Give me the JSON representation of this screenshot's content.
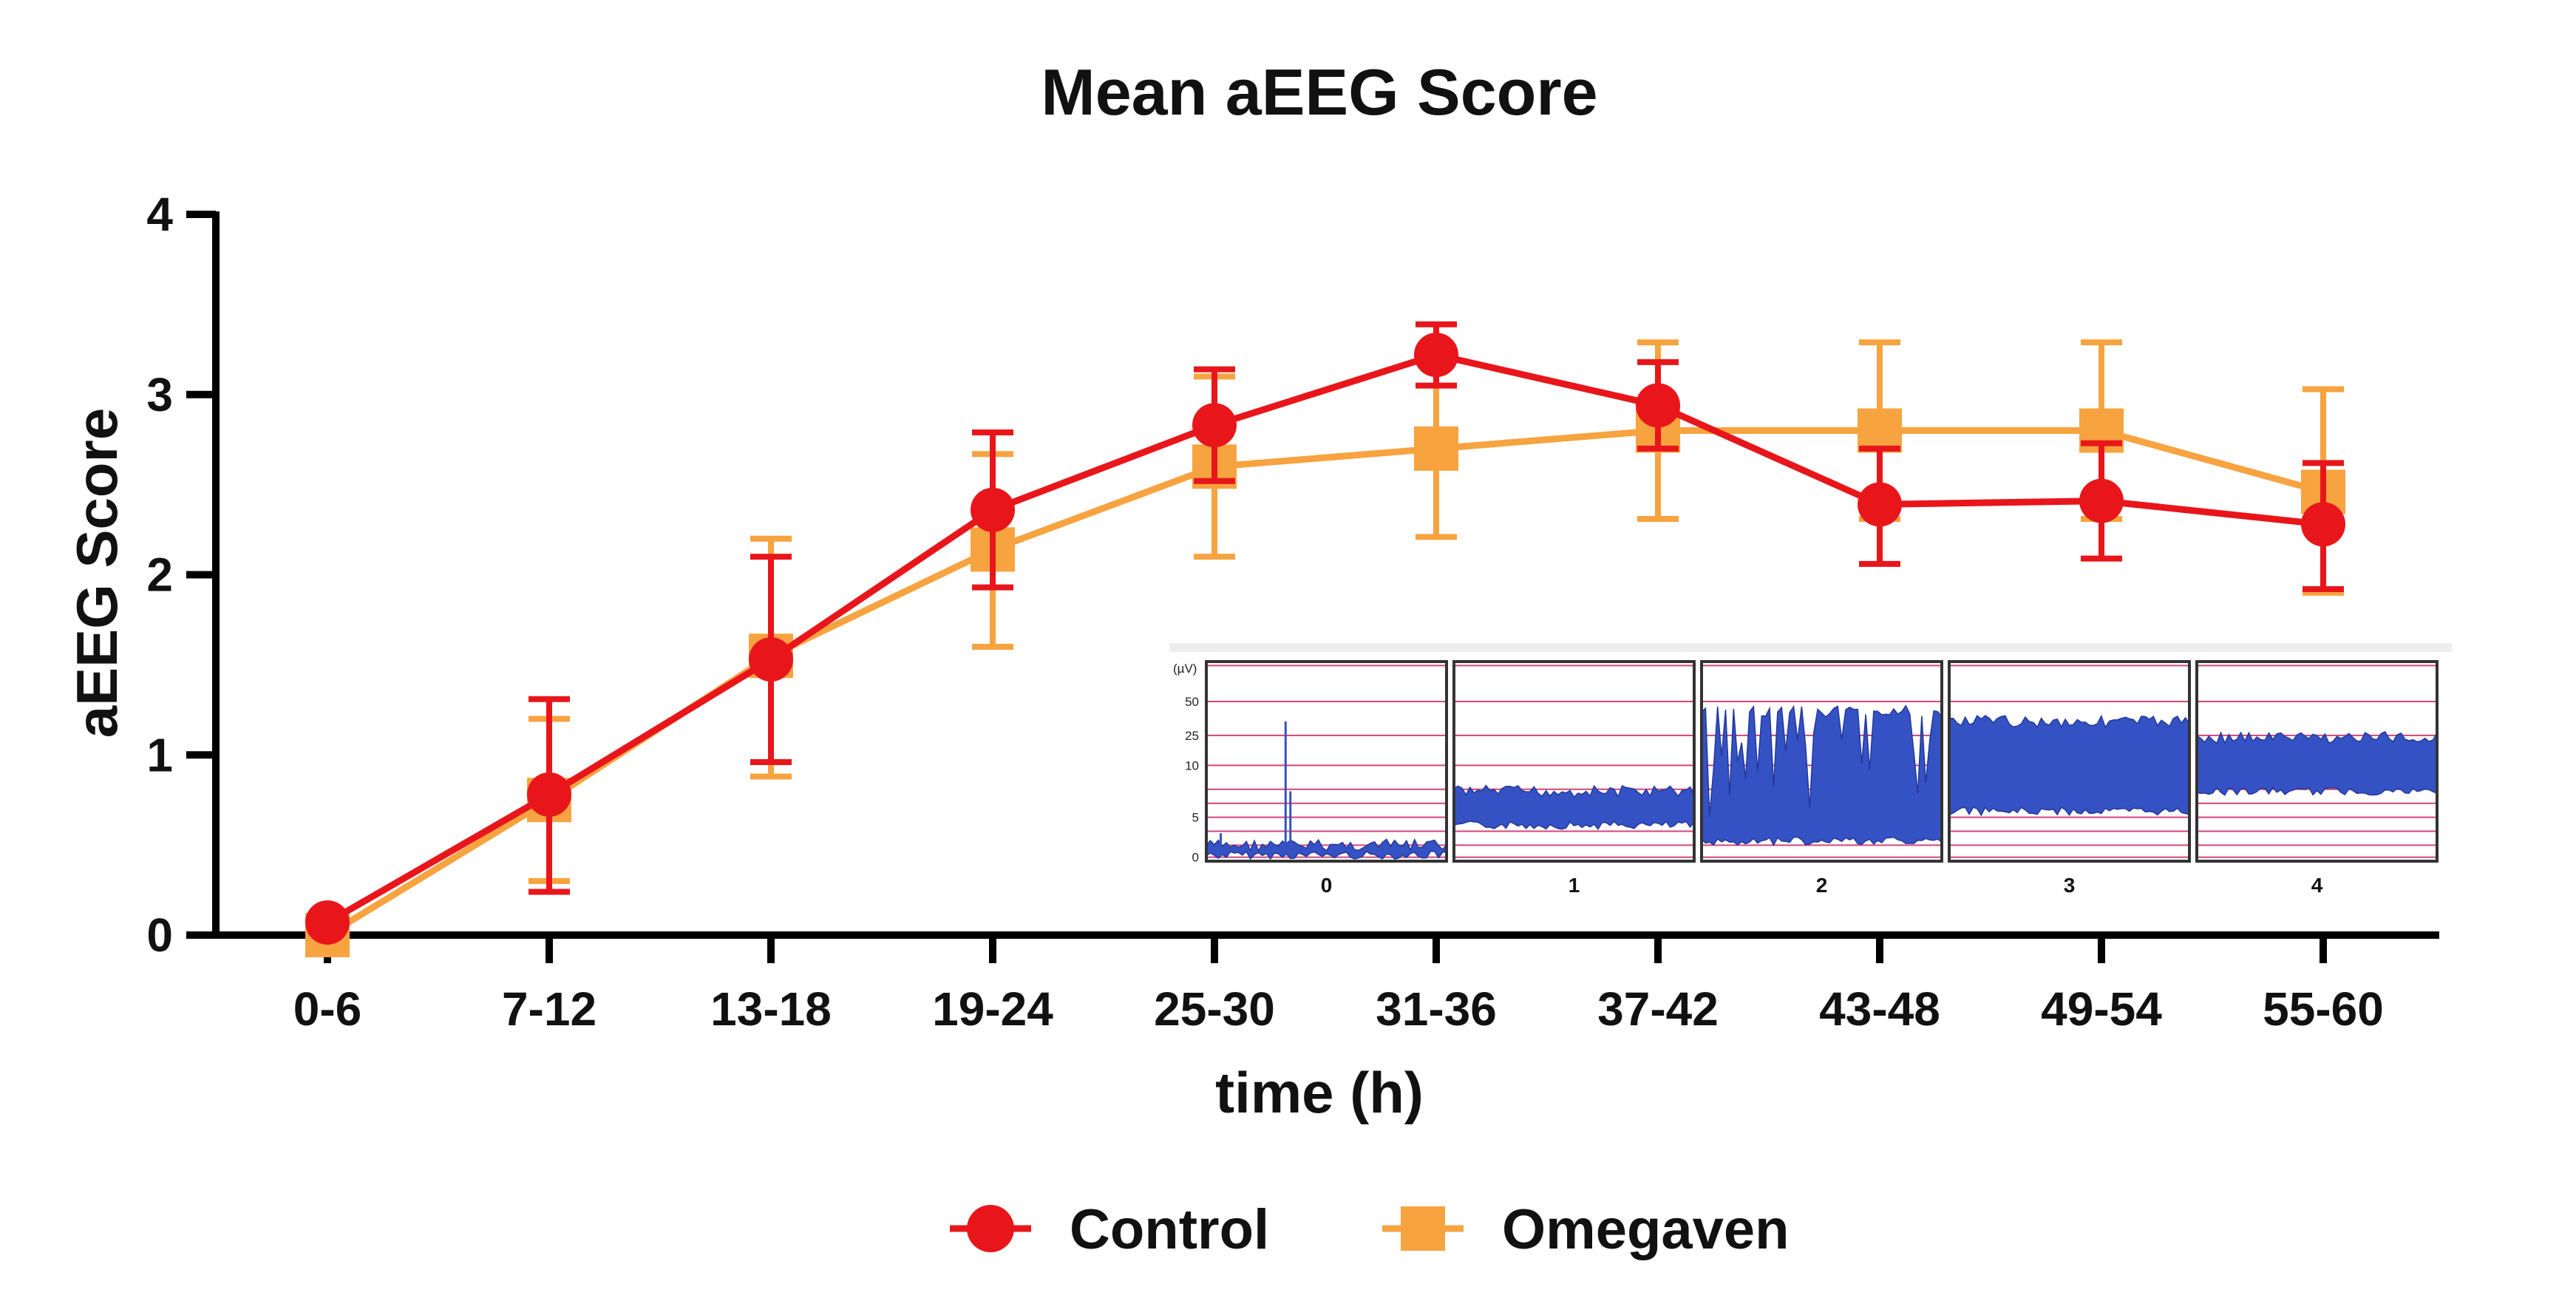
{
  "chart_data": {
    "type": "line",
    "title": "Mean aEEG Score",
    "xlabel": "time (h)",
    "ylabel": "aEEG Score",
    "ylim": [
      0,
      4
    ],
    "yticks": [
      0,
      1,
      2,
      3,
      4
    ],
    "categories": [
      "0-6",
      "7-12",
      "13-18",
      "19-24",
      "25-30",
      "31-36",
      "37-42",
      "43-48",
      "49-54",
      "55-60"
    ],
    "series": [
      {
        "name": "Control",
        "color": "#e8161b",
        "marker": "circle",
        "values": [
          0.07,
          0.78,
          1.53,
          2.36,
          2.83,
          3.22,
          2.94,
          2.39,
          2.41,
          2.28
        ],
        "error_low": [
          0.0,
          0.24,
          0.96,
          1.93,
          2.52,
          3.05,
          2.7,
          2.06,
          2.09,
          1.92
        ],
        "error_high": [
          0.0,
          1.31,
          2.1,
          2.79,
          3.14,
          3.39,
          3.18,
          2.7,
          2.73,
          2.62
        ]
      },
      {
        "name": "Omegaven",
        "color": "#f7a340",
        "marker": "square",
        "values": [
          0.0,
          0.75,
          1.55,
          2.14,
          2.6,
          2.7,
          2.8,
          2.8,
          2.8,
          2.46
        ],
        "error_low": [
          0.0,
          0.3,
          0.88,
          1.6,
          2.1,
          2.21,
          2.31,
          2.31,
          2.31,
          1.9
        ],
        "error_high": [
          0.0,
          1.2,
          2.2,
          2.67,
          3.1,
          3.19,
          3.29,
          3.29,
          3.29,
          3.03
        ]
      }
    ],
    "legend_position": "bottom",
    "grid": false,
    "inset": {
      "unit_label": "(µV)",
      "y_tick_labels": [
        "50",
        "25",
        "10",
        "5",
        "0"
      ],
      "panel_labels": [
        "0",
        "1",
        "2",
        "3",
        "4"
      ]
    }
  }
}
